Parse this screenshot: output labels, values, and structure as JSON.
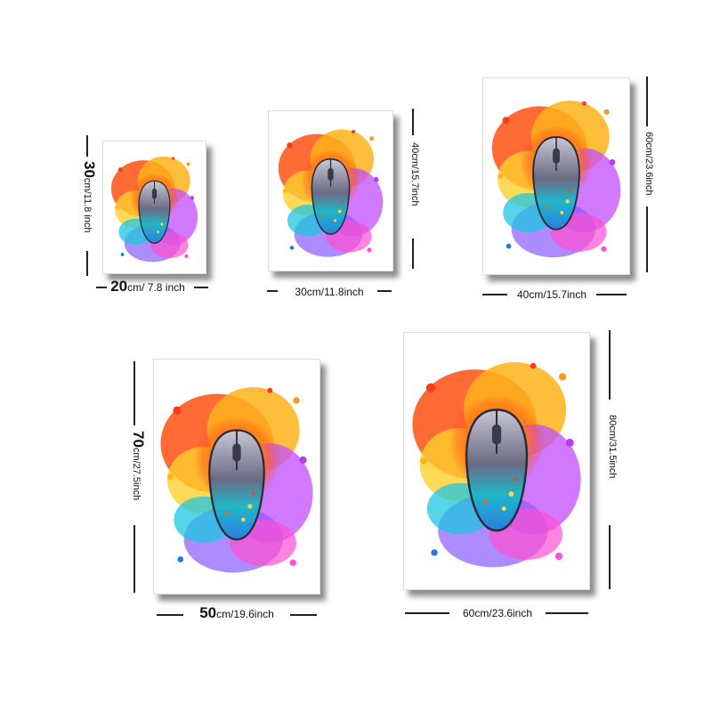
{
  "sizes": [
    {
      "width_main": "20",
      "width_rest": "cm/ 7.8 inch",
      "height_main": "30",
      "height_rest": "cm/11.8 inch"
    },
    {
      "width_main": "",
      "width_rest": "30cm/11.8inch",
      "height_main": "",
      "height_rest": "40cm/15.7inch"
    },
    {
      "width_main": "",
      "width_rest": "40cm/15.7inch",
      "height_main": "",
      "height_rest": "60cm/23.6inch"
    },
    {
      "width_main": "50",
      "width_rest": "cm/19.6inch",
      "height_main": "70",
      "height_rest": "cm/27.5inch"
    },
    {
      "width_main": "",
      "width_rest": "60cm/23.6inch",
      "height_main": "",
      "height_rest": "80cm/31.5inch"
    }
  ]
}
